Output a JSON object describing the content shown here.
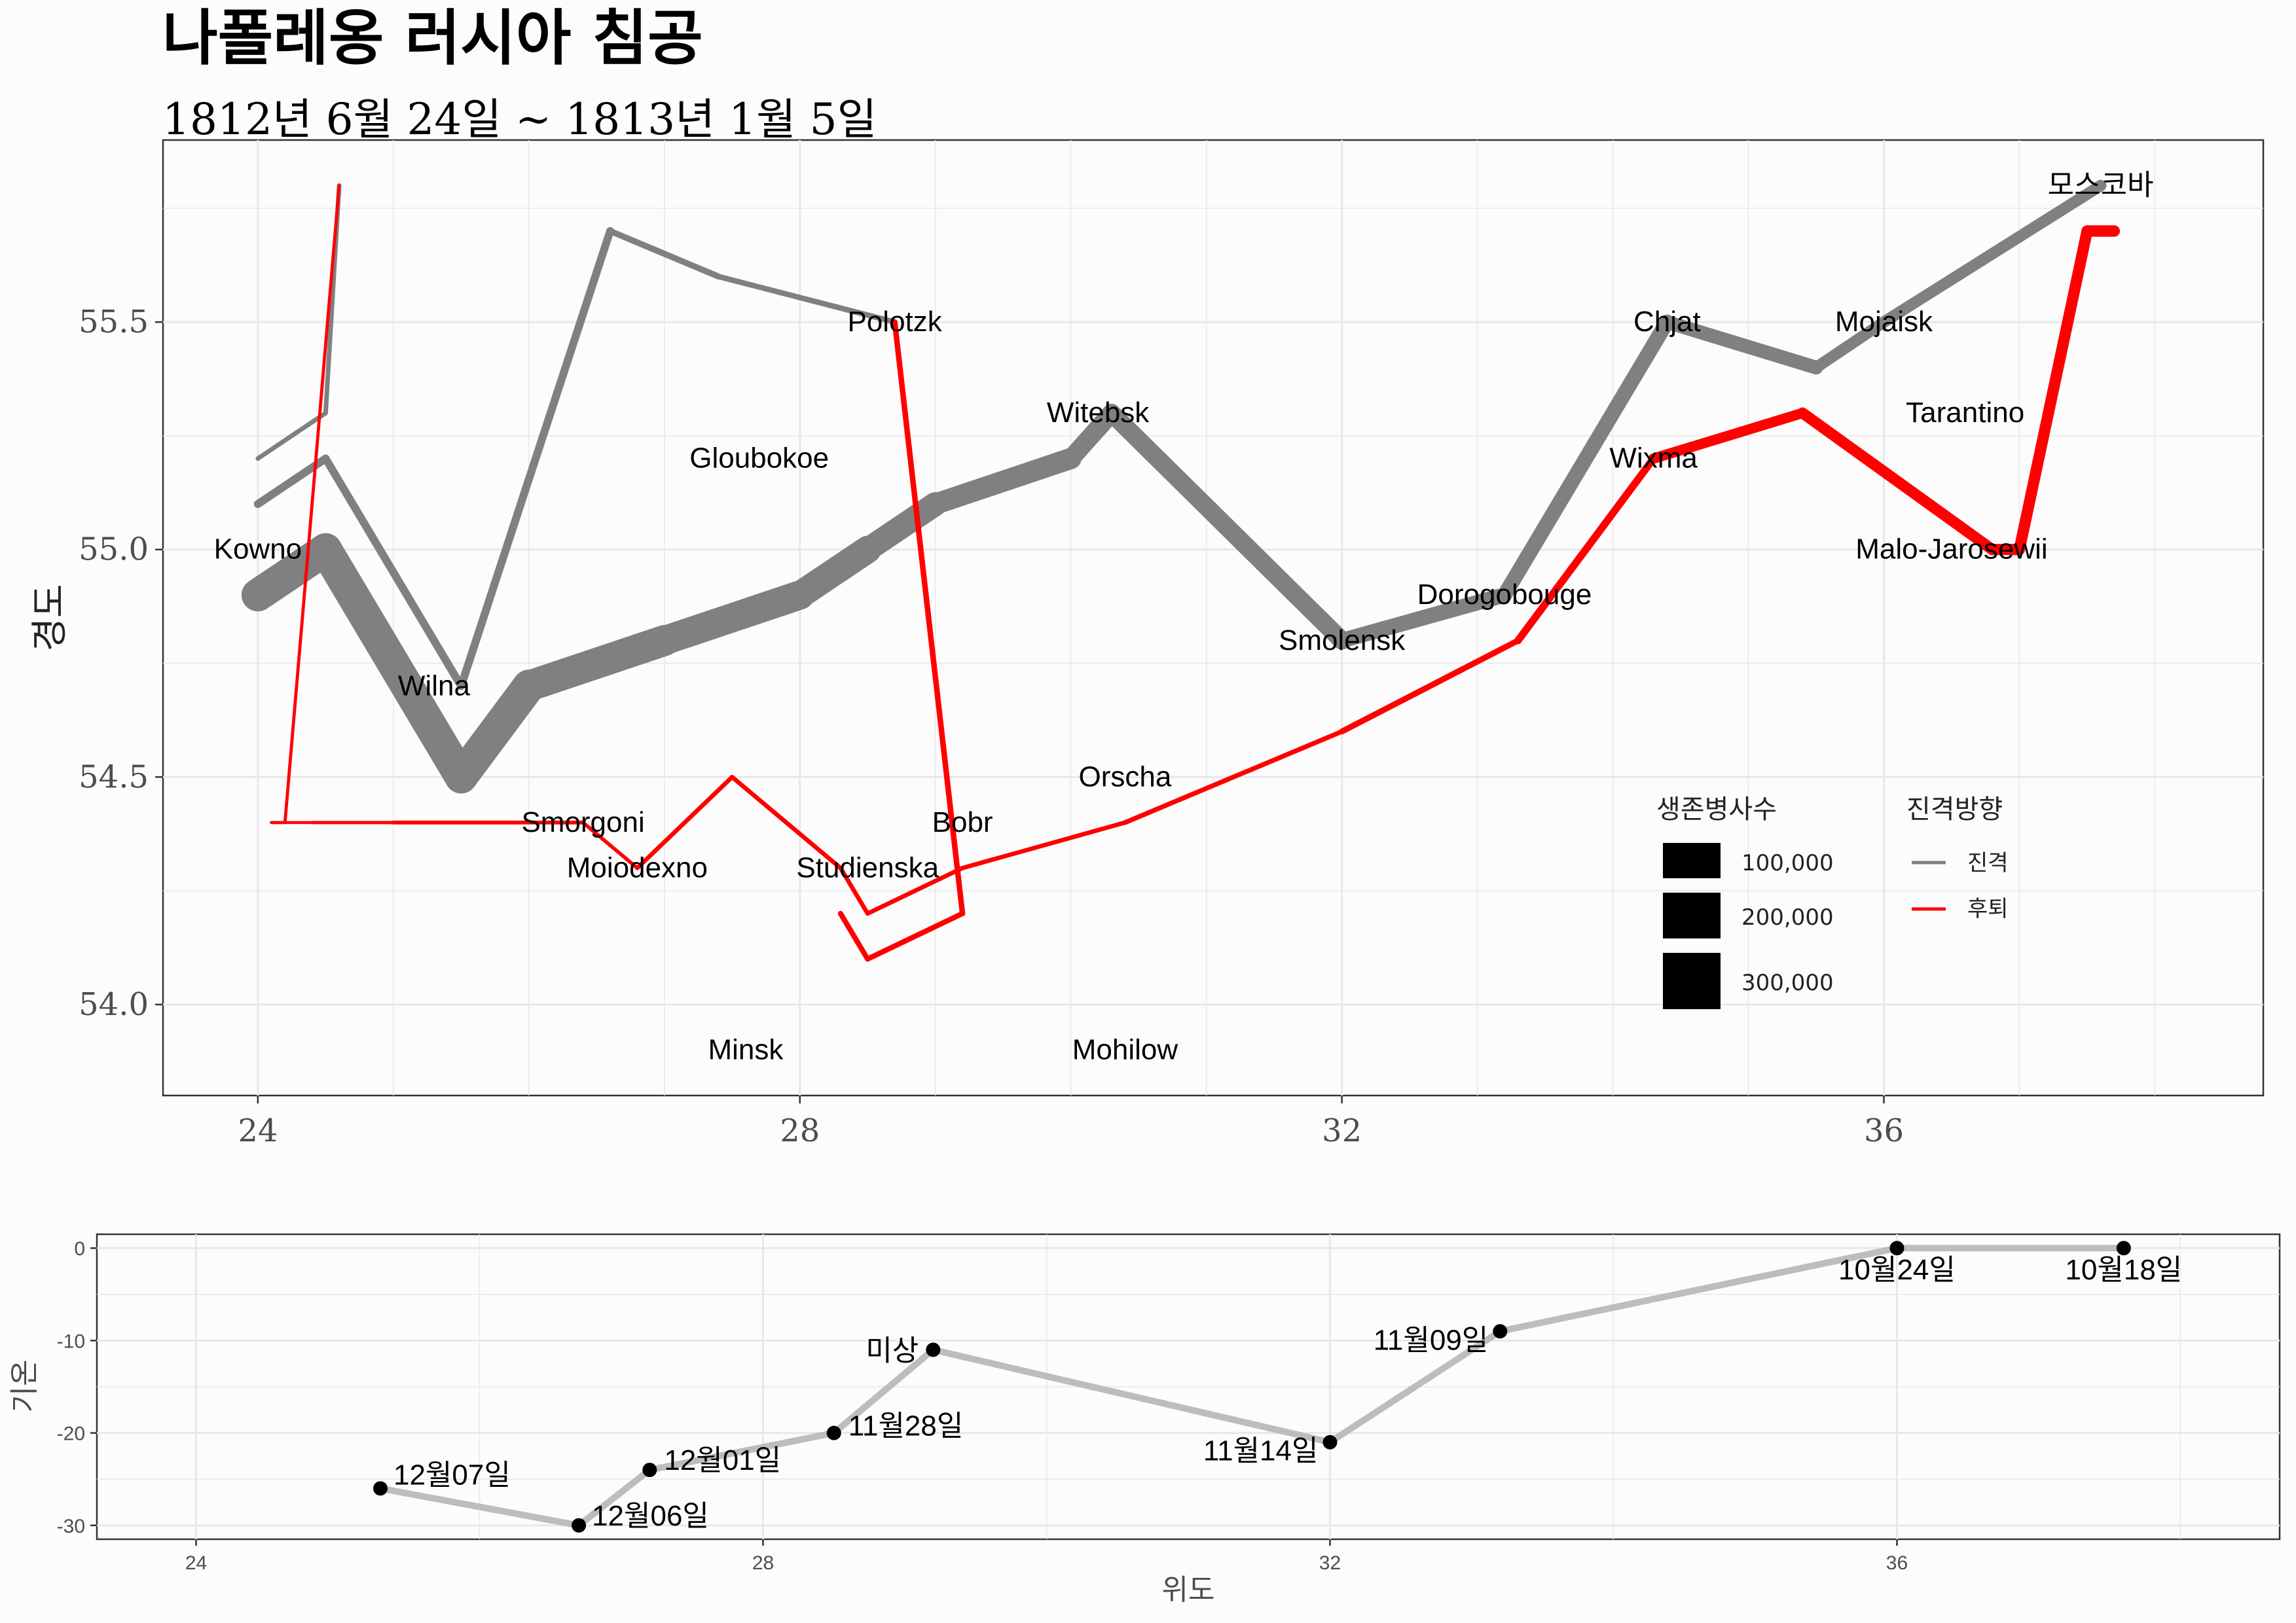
{
  "title": "나폴레옹 러시아 침공",
  "subtitle": "1812년 6월 24일 ~ 1813년 1월 5일",
  "colors": {
    "advance": "#808080",
    "retreat": "#ff0000",
    "temp_line": "#bdbdbd",
    "grid": "#e8e8e8",
    "panel_bg": "#fcfcfc"
  },
  "chart_data": [
    {
      "type": "line",
      "ylabel": "경도",
      "xlabel": "",
      "xlim": [
        23.3,
        38.8
      ],
      "ylim": [
        53.8,
        55.9
      ],
      "x_ticks": [
        24,
        28,
        32,
        36
      ],
      "y_ticks": [
        "54.0",
        "54.5",
        "55.0",
        "55.5"
      ],
      "y_tick_values": [
        54.0,
        54.5,
        55.0,
        55.5
      ],
      "legend_size": {
        "title": "생존병사수",
        "entries": [
          {
            "label": "100,000",
            "value": 100000
          },
          {
            "label": "200,000",
            "value": 200000
          },
          {
            "label": "300,000",
            "value": 300000
          }
        ]
      },
      "legend_direction": {
        "title": "진격방향",
        "entries": [
          {
            "label": "진격",
            "color": "#808080"
          },
          {
            "label": "후퇴",
            "color": "#ff0000"
          }
        ]
      },
      "series": [
        {
          "name": "진격",
          "group": 1,
          "points": [
            [
              24.0,
              54.9,
              340000
            ],
            [
              24.5,
              55.0,
              340000
            ],
            [
              25.5,
              54.5,
              340000
            ],
            [
              26.0,
              54.7,
              320000
            ],
            [
              27.0,
              54.8,
              300000
            ],
            [
              28.0,
              54.9,
              280000
            ],
            [
              28.5,
              55.0,
              240000
            ],
            [
              29.0,
              55.1,
              210000
            ],
            [
              30.0,
              55.2,
              180000
            ],
            [
              30.3,
              55.3,
              175000
            ],
            [
              32.0,
              54.8,
              145000
            ],
            [
              33.2,
              54.9,
              140000
            ],
            [
              34.4,
              55.5,
              127100
            ],
            [
              35.5,
              55.4,
              100000
            ],
            [
              36.0,
              55.5,
              100000
            ],
            [
              37.6,
              55.8,
              100000
            ]
          ]
        },
        {
          "name": "후퇴",
          "group": 1,
          "points": [
            [
              37.7,
              55.7,
              100000
            ],
            [
              37.5,
              55.7,
              98000
            ],
            [
              37.0,
              55.0,
              97000
            ],
            [
              36.8,
              55.0,
              96000
            ],
            [
              35.4,
              55.3,
              87000
            ],
            [
              34.3,
              55.2,
              55000
            ],
            [
              33.3,
              54.8,
              37000
            ],
            [
              32.0,
              54.6,
              24000
            ],
            [
              30.4,
              54.4,
              20000
            ],
            [
              29.2,
              54.3,
              20000
            ],
            [
              28.5,
              54.2,
              20000
            ],
            [
              28.3,
              54.3,
              20000
            ],
            [
              27.5,
              54.5,
              20000
            ],
            [
              26.8,
              54.3,
              12000
            ],
            [
              26.4,
              54.4,
              14000
            ],
            [
              25.0,
              54.4,
              8000
            ],
            [
              24.4,
              54.4,
              4000
            ],
            [
              24.2,
              54.4,
              4000
            ],
            [
              24.1,
              54.4,
              4000
            ]
          ]
        },
        {
          "name": "진격",
          "group": 2,
          "points": [
            [
              24.0,
              55.1,
              60000
            ],
            [
              24.5,
              55.2,
              60000
            ],
            [
              25.5,
              54.7,
              60000
            ],
            [
              26.6,
              55.7,
              40000
            ],
            [
              27.4,
              55.6,
              33000
            ],
            [
              28.7,
              55.5,
              33000
            ]
          ]
        },
        {
          "name": "후퇴",
          "group": 2,
          "points": [
            [
              28.7,
              55.5,
              33000
            ],
            [
              29.2,
              54.2,
              30000
            ],
            [
              28.5,
              54.1,
              30000
            ],
            [
              28.3,
              54.2,
              28000
            ]
          ]
        },
        {
          "name": "진격",
          "group": 3,
          "points": [
            [
              24.0,
              55.2,
              22000
            ],
            [
              24.5,
              55.3,
              22000
            ],
            [
              24.6,
              55.8,
              6000
            ]
          ]
        },
        {
          "name": "후퇴",
          "group": 3,
          "points": [
            [
              24.6,
              55.8,
              6000
            ],
            [
              24.2,
              54.4,
              6000
            ],
            [
              24.1,
              54.4,
              6000
            ]
          ]
        }
      ],
      "cities": [
        {
          "name": "Kowno",
          "lon": 24.0,
          "lat": 55.0
        },
        {
          "name": "Wilna",
          "lon": 25.3,
          "lat": 54.7
        },
        {
          "name": "Smorgoni",
          "lon": 26.4,
          "lat": 54.4
        },
        {
          "name": "Moiodexno",
          "lon": 26.8,
          "lat": 54.3
        },
        {
          "name": "Gloubokoe",
          "lon": 27.7,
          "lat": 55.2
        },
        {
          "name": "Minsk",
          "lon": 27.6,
          "lat": 53.9
        },
        {
          "name": "Studienska",
          "lon": 28.5,
          "lat": 54.3
        },
        {
          "name": "Polotzk",
          "lon": 28.7,
          "lat": 55.5
        },
        {
          "name": "Bobr",
          "lon": 29.2,
          "lat": 54.4
        },
        {
          "name": "Witebsk",
          "lon": 30.2,
          "lat": 55.3
        },
        {
          "name": "Orscha",
          "lon": 30.4,
          "lat": 54.5
        },
        {
          "name": "Mohilow",
          "lon": 30.4,
          "lat": 53.9
        },
        {
          "name": "Smolensk",
          "lon": 32.0,
          "lat": 54.8
        },
        {
          "name": "Dorogobouge",
          "lon": 33.2,
          "lat": 54.9
        },
        {
          "name": "Wixma",
          "lon": 34.3,
          "lat": 55.2
        },
        {
          "name": "Chjat",
          "lon": 34.4,
          "lat": 55.5
        },
        {
          "name": "Mojaisk",
          "lon": 36.0,
          "lat": 55.5
        },
        {
          "name": "모스코바",
          "lon": 37.6,
          "lat": 55.8
        },
        {
          "name": "Tarantino",
          "lon": 36.6,
          "lat": 55.3
        },
        {
          "name": "Malo-Jarosewii",
          "lon": 36.5,
          "lat": 55.0
        }
      ]
    },
    {
      "type": "line",
      "xlabel": "위도",
      "ylabel": "기온",
      "xlim": [
        23.3,
        38.7
      ],
      "ylim": [
        -31.5,
        1.5
      ],
      "x_ticks": [
        24,
        28,
        32,
        36
      ],
      "y_ticks": [
        "0",
        "-10",
        "-20",
        "-30"
      ],
      "y_tick_values": [
        0,
        -10,
        -20,
        -30
      ],
      "points": [
        {
          "lon": 37.6,
          "temp": 0,
          "label": "10월18일"
        },
        {
          "lon": 36.0,
          "temp": 0,
          "label": "10월24일"
        },
        {
          "lon": 33.2,
          "temp": -9,
          "label": "11월09일"
        },
        {
          "lon": 32.0,
          "temp": -21,
          "label": "11월14일"
        },
        {
          "lon": 29.2,
          "temp": -11,
          "label": "미상"
        },
        {
          "lon": 28.5,
          "temp": -20,
          "label": "11월28일"
        },
        {
          "lon": 27.2,
          "temp": -24,
          "label": "12월01일"
        },
        {
          "lon": 26.7,
          "temp": -30,
          "label": "12월06일"
        },
        {
          "lon": 25.3,
          "temp": -26,
          "label": "12월07일"
        }
      ]
    }
  ]
}
